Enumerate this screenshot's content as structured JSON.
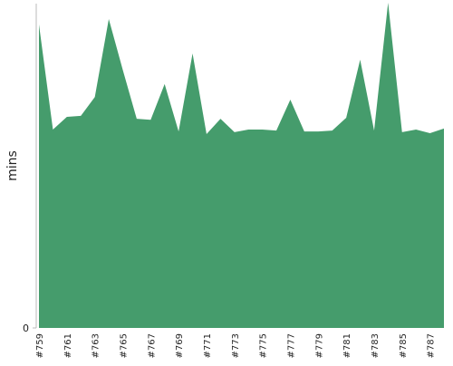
{
  "chart_data": {
    "type": "area",
    "y_label": "mins",
    "categories": [
      "#759",
      null,
      "#761",
      null,
      "#763",
      null,
      "#765",
      null,
      "#767",
      null,
      "#769",
      null,
      "#771",
      null,
      "#773",
      null,
      "#775",
      null,
      "#777",
      null,
      "#779",
      null,
      "#781",
      null,
      "#783",
      null,
      "#785",
      null,
      "#787",
      null
    ],
    "values": [
      93.3,
      61,
      64.9,
      65.2,
      71,
      95,
      79.4,
      64.3,
      64,
      75,
      60.4,
      84.4,
      59.6,
      64.3,
      60.2,
      61,
      61,
      60.7,
      70.2,
      60.4,
      60.4,
      60.7,
      64.6,
      82.5,
      60.7,
      100,
      60.2,
      61,
      59.9,
      61.3
    ],
    "color": "#459c6c",
    "ylim": [
      0,
      100
    ],
    "yticks": [
      0
    ]
  }
}
